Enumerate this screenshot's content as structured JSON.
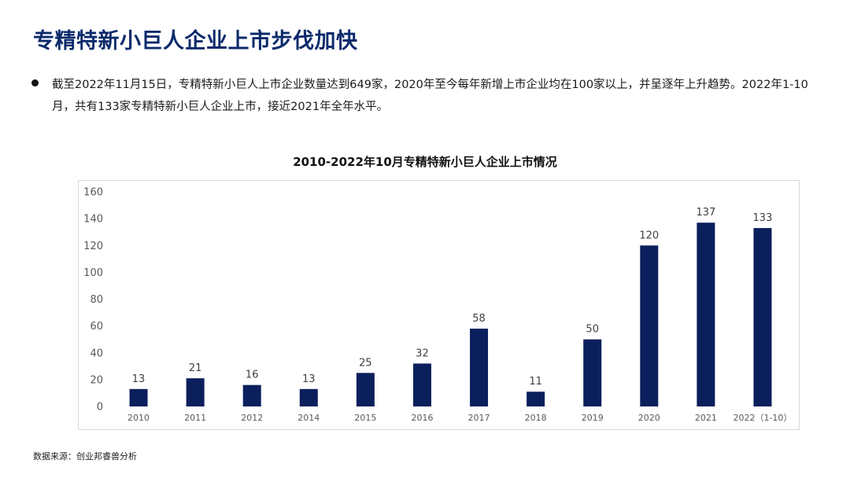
{
  "page": {
    "title": "专精特新小巨人企业上市步伐加快",
    "bullet": "截至2022年11月15日，专精特新小巨人上市企业数量达到649家，2020年至今每年新增上市企业均在100家以上，并呈逐年上升趋势。2022年1-10月，共有133家专精特新小巨人企业上市，接近2021年全年水平。",
    "source": "数据来源：创业邦睿兽分析"
  },
  "chart_data": {
    "type": "bar",
    "title": "2010-2022年10月专精特新小巨人企业上市情况",
    "categories": [
      "2010",
      "2011",
      "2012",
      "2014",
      "2015",
      "2016",
      "2017",
      "2018",
      "2019",
      "2020",
      "2021",
      "2022（1-10）"
    ],
    "values": [
      13,
      21,
      16,
      13,
      25,
      32,
      58,
      11,
      50,
      120,
      137,
      133
    ],
    "ylim": [
      0,
      160
    ],
    "yticks": [
      0,
      20,
      40,
      60,
      80,
      100,
      120,
      140,
      160
    ],
    "grid": false,
    "data_labels": true,
    "bar_color": "#0b1f5c"
  }
}
